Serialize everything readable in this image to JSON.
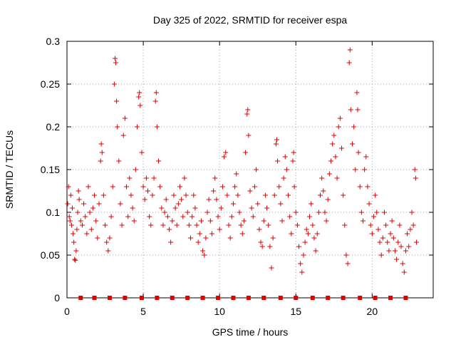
{
  "chart_data": {
    "type": "scatter",
    "title": "Day 325 of 2022, SRMTID for receiver espa",
    "xlabel": "GPS time / hours",
    "ylabel": "SRMTID / TECUs",
    "xlim": [
      0,
      24
    ],
    "ylim": [
      0,
      0.3
    ],
    "grid": true,
    "marker": "+",
    "color": "#e00000",
    "xticks": [
      0,
      5,
      10,
      15,
      20
    ],
    "xtick_labels": [
      "0",
      "5",
      "10",
      "15",
      "20"
    ],
    "yticks": [
      0,
      0.05,
      0.1,
      0.15,
      0.2,
      0.25,
      0.3
    ],
    "ytick_labels": [
      "0",
      "0.05",
      "0.1",
      "0.15",
      "0.2",
      "0.25",
      "0.3"
    ],
    "baseline_markers": {
      "y": 0,
      "x": [
        0.9,
        1.8,
        2.8,
        3.8,
        4.9,
        5.9,
        6.9,
        7.9,
        8.9,
        9.9,
        10.9,
        11.9,
        12.9,
        14.0,
        15.0,
        16.1,
        17.1,
        18.1,
        19.2,
        20.2,
        21.2,
        22.2
      ]
    },
    "series": [
      {
        "name": "SRMTID",
        "points": [
          [
            0.05,
            0.11
          ],
          [
            0.1,
            0.13
          ],
          [
            0.15,
            0.095
          ],
          [
            0.2,
            0.09
          ],
          [
            0.25,
            0.12
          ],
          [
            0.3,
            0.085
          ],
          [
            0.35,
            0.105
          ],
          [
            0.4,
            0.075
          ],
          [
            0.45,
            0.065
          ],
          [
            0.5,
            0.045
          ],
          [
            0.55,
            0.044
          ],
          [
            0.6,
            0.055
          ],
          [
            0.65,
            0.08
          ],
          [
            0.7,
            0.1
          ],
          [
            0.75,
            0.125
          ],
          [
            0.8,
            0.115
          ],
          [
            0.9,
            0.09
          ],
          [
            1.0,
            0.085
          ],
          [
            1.1,
            0.11
          ],
          [
            1.2,
            0.095
          ],
          [
            1.3,
            0.075
          ],
          [
            1.4,
            0.13
          ],
          [
            1.5,
            0.1
          ],
          [
            1.6,
            0.08
          ],
          [
            1.7,
            0.105
          ],
          [
            1.8,
            0.12
          ],
          [
            1.9,
            0.09
          ],
          [
            2.0,
            0.07
          ],
          [
            2.1,
            0.11
          ],
          [
            2.2,
            0.16
          ],
          [
            2.25,
            0.18
          ],
          [
            2.3,
            0.17
          ],
          [
            2.4,
            0.12
          ],
          [
            2.5,
            0.085
          ],
          [
            2.6,
            0.065
          ],
          [
            2.7,
            0.055
          ],
          [
            2.8,
            0.07
          ],
          [
            2.9,
            0.095
          ],
          [
            3.0,
            0.13
          ],
          [
            3.1,
            0.25
          ],
          [
            3.15,
            0.28
          ],
          [
            3.2,
            0.275
          ],
          [
            3.25,
            0.23
          ],
          [
            3.3,
            0.2
          ],
          [
            3.4,
            0.16
          ],
          [
            3.5,
            0.11
          ],
          [
            3.6,
            0.085
          ],
          [
            3.7,
            0.19
          ],
          [
            3.8,
            0.21
          ],
          [
            3.9,
            0.13
          ],
          [
            4.0,
            0.095
          ],
          [
            4.1,
            0.14
          ],
          [
            4.2,
            0.12
          ],
          [
            4.3,
            0.105
          ],
          [
            4.4,
            0.09
          ],
          [
            4.5,
            0.15
          ],
          [
            4.6,
            0.2
          ],
          [
            4.7,
            0.235
          ],
          [
            4.75,
            0.24
          ],
          [
            4.8,
            0.225
          ],
          [
            4.9,
            0.17
          ],
          [
            5.0,
            0.13
          ],
          [
            5.1,
            0.115
          ],
          [
            5.2,
            0.14
          ],
          [
            5.3,
            0.125
          ],
          [
            5.4,
            0.095
          ],
          [
            5.5,
            0.085
          ],
          [
            5.6,
            0.12
          ],
          [
            5.7,
            0.14
          ],
          [
            5.8,
            0.23
          ],
          [
            5.85,
            0.24
          ],
          [
            5.9,
            0.2
          ],
          [
            6.0,
            0.16
          ],
          [
            6.1,
            0.13
          ],
          [
            6.2,
            0.105
          ],
          [
            6.3,
            0.085
          ],
          [
            6.4,
            0.1
          ],
          [
            6.5,
            0.115
          ],
          [
            6.6,
            0.095
          ],
          [
            6.7,
            0.08
          ],
          [
            6.8,
            0.065
          ],
          [
            6.9,
            0.09
          ],
          [
            7.0,
            0.12
          ],
          [
            7.1,
            0.105
          ],
          [
            7.2,
            0.085
          ],
          [
            7.3,
            0.11
          ],
          [
            7.4,
            0.13
          ],
          [
            7.5,
            0.115
          ],
          [
            7.6,
            0.095
          ],
          [
            7.7,
            0.14
          ],
          [
            7.8,
            0.12
          ],
          [
            7.9,
            0.1
          ],
          [
            8.0,
            0.085
          ],
          [
            8.1,
            0.07
          ],
          [
            8.2,
            0.095
          ],
          [
            8.3,
            0.12
          ],
          [
            8.4,
            0.105
          ],
          [
            8.5,
            0.085
          ],
          [
            8.6,
            0.065
          ],
          [
            8.7,
            0.075
          ],
          [
            8.8,
            0.09
          ],
          [
            8.9,
            0.055
          ],
          [
            9.0,
            0.05
          ],
          [
            9.1,
            0.07
          ],
          [
            9.2,
            0.1
          ],
          [
            9.3,
            0.115
          ],
          [
            9.4,
            0.09
          ],
          [
            9.5,
            0.075
          ],
          [
            9.6,
            0.125
          ],
          [
            9.7,
            0.14
          ],
          [
            9.8,
            0.115
          ],
          [
            9.9,
            0.095
          ],
          [
            10.0,
            0.08
          ],
          [
            10.1,
            0.105
          ],
          [
            10.2,
            0.13
          ],
          [
            10.3,
            0.165
          ],
          [
            10.4,
            0.17
          ],
          [
            10.5,
            0.12
          ],
          [
            10.6,
            0.085
          ],
          [
            10.7,
            0.07
          ],
          [
            10.8,
            0.095
          ],
          [
            10.9,
            0.11
          ],
          [
            11.0,
            0.13
          ],
          [
            11.1,
            0.145
          ],
          [
            11.2,
            0.12
          ],
          [
            11.3,
            0.1
          ],
          [
            11.4,
            0.085
          ],
          [
            11.5,
            0.075
          ],
          [
            11.6,
            0.09
          ],
          [
            11.7,
            0.17
          ],
          [
            11.8,
            0.215
          ],
          [
            11.85,
            0.22
          ],
          [
            11.9,
            0.19
          ],
          [
            12.0,
            0.125
          ],
          [
            12.1,
            0.105
          ],
          [
            12.2,
            0.095
          ],
          [
            12.3,
            0.13
          ],
          [
            12.4,
            0.15
          ],
          [
            12.5,
            0.11
          ],
          [
            12.6,
            0.08
          ],
          [
            12.7,
            0.065
          ],
          [
            12.8,
            0.06
          ],
          [
            12.9,
            0.09
          ],
          [
            13.0,
            0.12
          ],
          [
            13.1,
            0.105
          ],
          [
            13.2,
            0.085
          ],
          [
            13.3,
            0.06
          ],
          [
            13.4,
            0.035
          ],
          [
            13.5,
            0.07
          ],
          [
            13.6,
            0.12
          ],
          [
            13.7,
            0.18
          ],
          [
            13.75,
            0.185
          ],
          [
            13.8,
            0.16
          ],
          [
            13.9,
            0.13
          ],
          [
            14.0,
            0.11
          ],
          [
            14.1,
            0.09
          ],
          [
            14.2,
            0.14
          ],
          [
            14.3,
            0.165
          ],
          [
            14.4,
            0.15
          ],
          [
            14.5,
            0.12
          ],
          [
            14.6,
            0.095
          ],
          [
            14.7,
            0.075
          ],
          [
            14.8,
            0.16
          ],
          [
            14.85,
            0.17
          ],
          [
            14.9,
            0.13
          ],
          [
            15.0,
            0.1
          ],
          [
            15.1,
            0.085
          ],
          [
            15.2,
            0.06
          ],
          [
            15.3,
            0.04
          ],
          [
            15.4,
            0.03
          ],
          [
            15.5,
            0.05
          ],
          [
            15.6,
            0.065
          ],
          [
            15.7,
            0.08
          ],
          [
            15.8,
            0.075
          ],
          [
            15.9,
            0.095
          ],
          [
            16.0,
            0.11
          ],
          [
            16.1,
            0.085
          ],
          [
            16.2,
            0.07
          ],
          [
            16.3,
            0.055
          ],
          [
            16.4,
            0.075
          ],
          [
            16.5,
            0.1
          ],
          [
            16.6,
            0.12
          ],
          [
            16.7,
            0.14
          ],
          [
            16.8,
            0.125
          ],
          [
            16.9,
            0.1
          ],
          [
            17.0,
            0.09
          ],
          [
            17.1,
            0.115
          ],
          [
            17.2,
            0.145
          ],
          [
            17.3,
            0.16
          ],
          [
            17.4,
            0.18
          ],
          [
            17.5,
            0.19
          ],
          [
            17.6,
            0.165
          ],
          [
            17.7,
            0.14
          ],
          [
            17.8,
            0.2
          ],
          [
            17.9,
            0.21
          ],
          [
            18.0,
            0.175
          ],
          [
            18.1,
            0.12
          ],
          [
            18.2,
            0.085
          ],
          [
            18.3,
            0.05
          ],
          [
            18.4,
            0.04
          ],
          [
            18.5,
            0.275
          ],
          [
            18.55,
            0.29
          ],
          [
            18.6,
            0.22
          ],
          [
            18.7,
            0.18
          ],
          [
            18.8,
            0.2
          ],
          [
            18.9,
            0.15
          ],
          [
            19.0,
            0.24
          ],
          [
            19.05,
            0.22
          ],
          [
            19.1,
            0.17
          ],
          [
            19.2,
            0.13
          ],
          [
            19.3,
            0.1
          ],
          [
            19.4,
            0.09
          ],
          [
            19.5,
            0.15
          ],
          [
            19.6,
            0.165
          ],
          [
            19.7,
            0.13
          ],
          [
            19.8,
            0.11
          ],
          [
            19.9,
            0.085
          ],
          [
            20.0,
            0.075
          ],
          [
            20.1,
            0.095
          ],
          [
            20.2,
            0.12
          ],
          [
            20.3,
            0.1
          ],
          [
            20.4,
            0.08
          ],
          [
            20.5,
            0.065
          ],
          [
            20.6,
            0.05
          ],
          [
            20.7,
            0.07
          ],
          [
            20.8,
            0.1
          ],
          [
            20.9,
            0.085
          ],
          [
            21.0,
            0.065
          ],
          [
            21.1,
            0.055
          ],
          [
            21.2,
            0.075
          ],
          [
            21.3,
            0.09
          ],
          [
            21.4,
            0.07
          ],
          [
            21.5,
            0.055
          ],
          [
            21.6,
            0.045
          ],
          [
            21.7,
            0.065
          ],
          [
            21.8,
            0.085
          ],
          [
            21.9,
            0.06
          ],
          [
            22.0,
            0.04
          ],
          [
            22.1,
            0.03
          ],
          [
            22.2,
            0.055
          ],
          [
            22.3,
            0.075
          ],
          [
            22.4,
            0.06
          ],
          [
            22.5,
            0.08
          ],
          [
            22.6,
            0.1
          ],
          [
            22.7,
            0.085
          ],
          [
            22.8,
            0.15
          ],
          [
            22.85,
            0.14
          ],
          [
            22.9,
            0.065
          ]
        ]
      }
    ]
  }
}
